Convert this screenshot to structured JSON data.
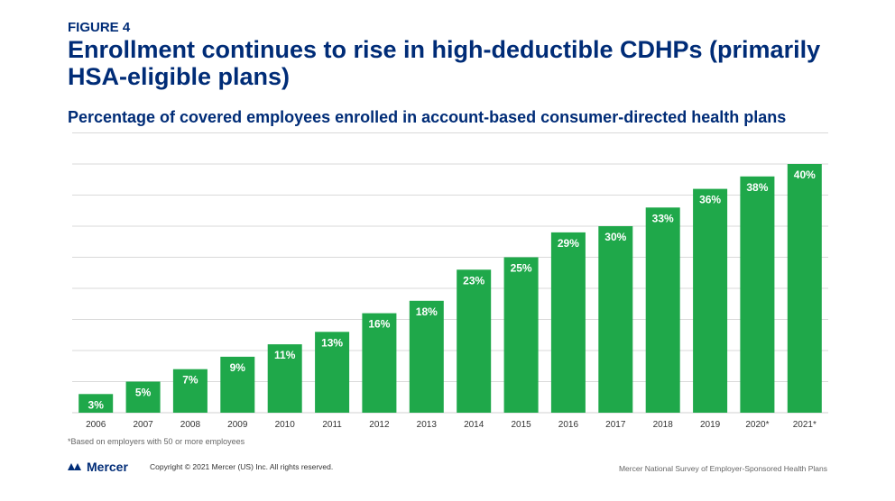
{
  "header": {
    "figure_label": "FIGURE 4",
    "title": "Enrollment continues to rise in high-deductible CDHPs (primarily HSA-eligible plans)",
    "subtitle": "Percentage of covered employees enrolled in account-based consumer-directed health plans"
  },
  "chart_data": {
    "type": "bar",
    "title": "Percentage of covered employees enrolled in account-based consumer-directed health plans",
    "xlabel": "",
    "ylabel": "",
    "categories": [
      "2006",
      "2007",
      "2008",
      "2009",
      "2010",
      "2011",
      "2012",
      "2013",
      "2014",
      "2015",
      "2016",
      "2017",
      "2018",
      "2019",
      "2020*",
      "2021*"
    ],
    "values": [
      3,
      5,
      7,
      9,
      11,
      13,
      16,
      18,
      23,
      25,
      29,
      30,
      33,
      36,
      38,
      40
    ],
    "labels": [
      "3%",
      "5%",
      "7%",
      "9%",
      "11%",
      "13%",
      "16%",
      "18%",
      "23%",
      "25%",
      "29%",
      "30%",
      "33%",
      "36%",
      "38%",
      "40%"
    ],
    "ylim": [
      0,
      40
    ],
    "gridlines": true,
    "bar_color": "#1fa84a",
    "gridline_color": "#d9d9d9"
  },
  "footer": {
    "footnote": "*Based on employers with 50 or more employees",
    "logo_text": "Mercer",
    "copyright": "Copyright © 2021 Mercer (US) Inc. All rights reserved.",
    "source": "Mercer National Survey of Employer-Sponsored Health Plans"
  },
  "colors": {
    "brand_navy": "#002c77",
    "bar_green": "#1fa84a"
  }
}
